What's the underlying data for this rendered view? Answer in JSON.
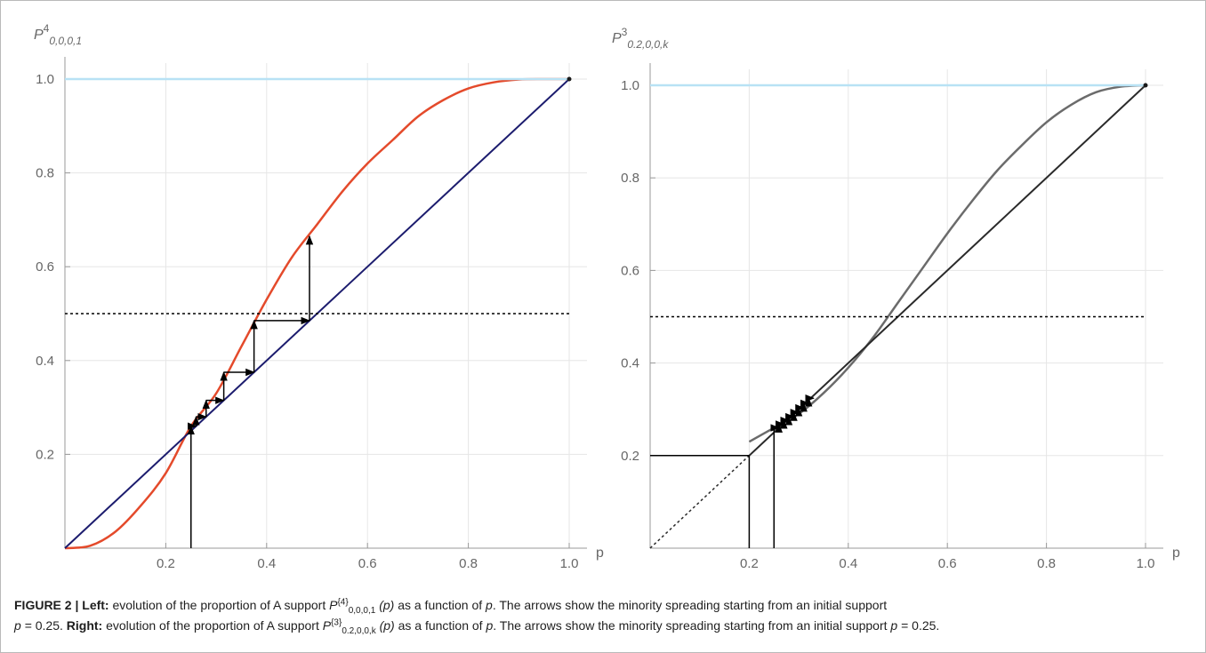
{
  "chart_data": [
    {
      "id": "left",
      "type": "line",
      "ylabel": {
        "base": "P",
        "sup": "4",
        "sub": "0,0,0,1"
      },
      "xlabel": "p",
      "xlim": [
        0,
        1.0
      ],
      "ylim": [
        0,
        1.0
      ],
      "xticks": [
        "0.2",
        "0.4",
        "0.6",
        "0.8",
        "1.0"
      ],
      "xtick_values": [
        0.2,
        0.4,
        0.6,
        0.8,
        1.0
      ],
      "yticks": [
        "0.2",
        "0.4",
        "0.6",
        "0.8",
        "1.0"
      ],
      "ytick_values": [
        0.2,
        0.4,
        0.6,
        0.8,
        1.0
      ],
      "grid": true,
      "series": [
        {
          "kind": "curve",
          "color": "#e44a2b",
          "x": [
            0,
            0.05,
            0.1,
            0.15,
            0.2,
            0.25,
            0.3,
            0.35,
            0.4,
            0.45,
            0.5,
            0.55,
            0.6,
            0.65,
            0.7,
            0.75,
            0.8,
            0.85,
            0.9,
            0.95,
            1.0
          ],
          "y": [
            0,
            0.005,
            0.035,
            0.09,
            0.16,
            0.26,
            0.33,
            0.43,
            0.53,
            0.62,
            0.69,
            0.76,
            0.82,
            0.87,
            0.92,
            0.955,
            0.98,
            0.993,
            0.999,
            1.0,
            1.0
          ]
        },
        {
          "kind": "diagonal",
          "color": "#1c1c6e",
          "x": [
            0,
            1.0
          ],
          "y": [
            0,
            1.0
          ]
        },
        {
          "kind": "hline",
          "color": "#b8e2f5",
          "y": 1.0
        },
        {
          "kind": "dashed-hline",
          "color": "#000000",
          "y": 0.5
        }
      ],
      "arrows": [
        {
          "x1": 0.25,
          "y1": 0,
          "x2": 0.25,
          "y2": 0.26
        },
        {
          "x1": 0.25,
          "y1": 0.26,
          "x2": 0.26,
          "y2": 0.26
        },
        {
          "x1": 0.26,
          "y1": 0.26,
          "x2": 0.26,
          "y2": 0.28
        },
        {
          "x1": 0.26,
          "y1": 0.28,
          "x2": 0.28,
          "y2": 0.28
        },
        {
          "x1": 0.28,
          "y1": 0.28,
          "x2": 0.28,
          "y2": 0.315
        },
        {
          "x1": 0.28,
          "y1": 0.315,
          "x2": 0.315,
          "y2": 0.315
        },
        {
          "x1": 0.315,
          "y1": 0.315,
          "x2": 0.315,
          "y2": 0.375
        },
        {
          "x1": 0.315,
          "y1": 0.375,
          "x2": 0.375,
          "y2": 0.375
        },
        {
          "x1": 0.375,
          "y1": 0.375,
          "x2": 0.375,
          "y2": 0.485
        },
        {
          "x1": 0.375,
          "y1": 0.485,
          "x2": 0.485,
          "y2": 0.485
        },
        {
          "x1": 0.485,
          "y1": 0.485,
          "x2": 0.485,
          "y2": 0.665
        }
      ]
    },
    {
      "id": "right",
      "type": "line",
      "ylabel": {
        "base": "P",
        "sup": "3",
        "sub": "0.2,0,0,k"
      },
      "xlabel": "p",
      "xlim": [
        0,
        1.0
      ],
      "ylim": [
        0,
        1.0
      ],
      "xticks": [
        "0.2",
        "0.4",
        "0.6",
        "0.8",
        "1.0"
      ],
      "xtick_values": [
        0.2,
        0.4,
        0.6,
        0.8,
        1.0
      ],
      "yticks": [
        "0.2",
        "0.4",
        "0.6",
        "0.8",
        "1.0"
      ],
      "ytick_values": [
        0.2,
        0.4,
        0.6,
        0.8,
        1.0
      ],
      "grid": true,
      "series": [
        {
          "kind": "curve",
          "color": "#6b6b6b",
          "x": [
            0.2,
            0.25,
            0.3,
            0.35,
            0.4,
            0.45,
            0.5,
            0.55,
            0.6,
            0.65,
            0.7,
            0.75,
            0.8,
            0.85,
            0.9,
            0.95,
            1.0
          ],
          "y": [
            0.23,
            0.26,
            0.29,
            0.335,
            0.39,
            0.455,
            0.53,
            0.605,
            0.68,
            0.75,
            0.815,
            0.87,
            0.92,
            0.958,
            0.985,
            0.997,
            1.0
          ]
        },
        {
          "kind": "diagonal",
          "color": "#2a2a2a",
          "x": [
            0.2,
            1.0
          ],
          "y": [
            0.2,
            1.0
          ]
        },
        {
          "kind": "dashed-diagonal",
          "color": "#2a2a2a",
          "x": [
            0,
            0.2
          ],
          "y": [
            0,
            0.2
          ]
        },
        {
          "kind": "hline",
          "color": "#b8e2f5",
          "y": 1.0
        },
        {
          "kind": "dashed-hline",
          "color": "#000000",
          "y": 0.5
        }
      ],
      "segments": [
        {
          "x1": 0,
          "y1": 0.2,
          "x2": 0.2,
          "y2": 0.2
        },
        {
          "x1": 0.2,
          "y1": 0,
          "x2": 0.2,
          "y2": 0.2
        },
        {
          "x1": 0.25,
          "y1": 0,
          "x2": 0.25,
          "y2": 0.26
        }
      ],
      "arrows": [
        {
          "x1": 0.25,
          "y1": 0.26,
          "x2": 0.26,
          "y2": 0.26
        },
        {
          "x1": 0.26,
          "y1": 0.26,
          "x2": 0.26,
          "y2": 0.268
        },
        {
          "x1": 0.26,
          "y1": 0.268,
          "x2": 0.27,
          "y2": 0.268
        },
        {
          "x1": 0.27,
          "y1": 0.268,
          "x2": 0.27,
          "y2": 0.276
        },
        {
          "x1": 0.27,
          "y1": 0.276,
          "x2": 0.28,
          "y2": 0.276
        },
        {
          "x1": 0.28,
          "y1": 0.276,
          "x2": 0.28,
          "y2": 0.284
        },
        {
          "x1": 0.28,
          "y1": 0.284,
          "x2": 0.29,
          "y2": 0.284
        },
        {
          "x1": 0.29,
          "y1": 0.284,
          "x2": 0.29,
          "y2": 0.293
        },
        {
          "x1": 0.29,
          "y1": 0.293,
          "x2": 0.3,
          "y2": 0.293
        },
        {
          "x1": 0.3,
          "y1": 0.293,
          "x2": 0.3,
          "y2": 0.303
        },
        {
          "x1": 0.3,
          "y1": 0.303,
          "x2": 0.31,
          "y2": 0.303
        },
        {
          "x1": 0.31,
          "y1": 0.303,
          "x2": 0.31,
          "y2": 0.313
        },
        {
          "x1": 0.31,
          "y1": 0.313,
          "x2": 0.32,
          "y2": 0.313
        },
        {
          "x1": 0.32,
          "y1": 0.313,
          "x2": 0.32,
          "y2": 0.324
        },
        {
          "x1": 0.32,
          "y1": 0.324,
          "x2": 0.33,
          "y2": 0.324
        }
      ]
    }
  ],
  "caption": {
    "label": "FIGURE 2 |",
    "left_head": "Left:",
    "left_text_1": "evolution of the proportion of A support",
    "left_P_sup": "{4}",
    "left_P_sub": "0,0,0,1",
    "left_text_2": "as a function of",
    "left_text_3": ". The arrows show the minority spreading starting from an initial support",
    "var_p": "p",
    "eq_value": "= 0.25.",
    "right_head": "Right:",
    "right_text_1": "evolution of the proportion of A support",
    "right_P_sup": "{3}",
    "right_P_sub": "0.2,0,0,k",
    "right_text_2": "as a function of",
    "right_text_3": ". The arrows show the minority spreading starting from an initial support",
    "paren_p": "(p)"
  }
}
